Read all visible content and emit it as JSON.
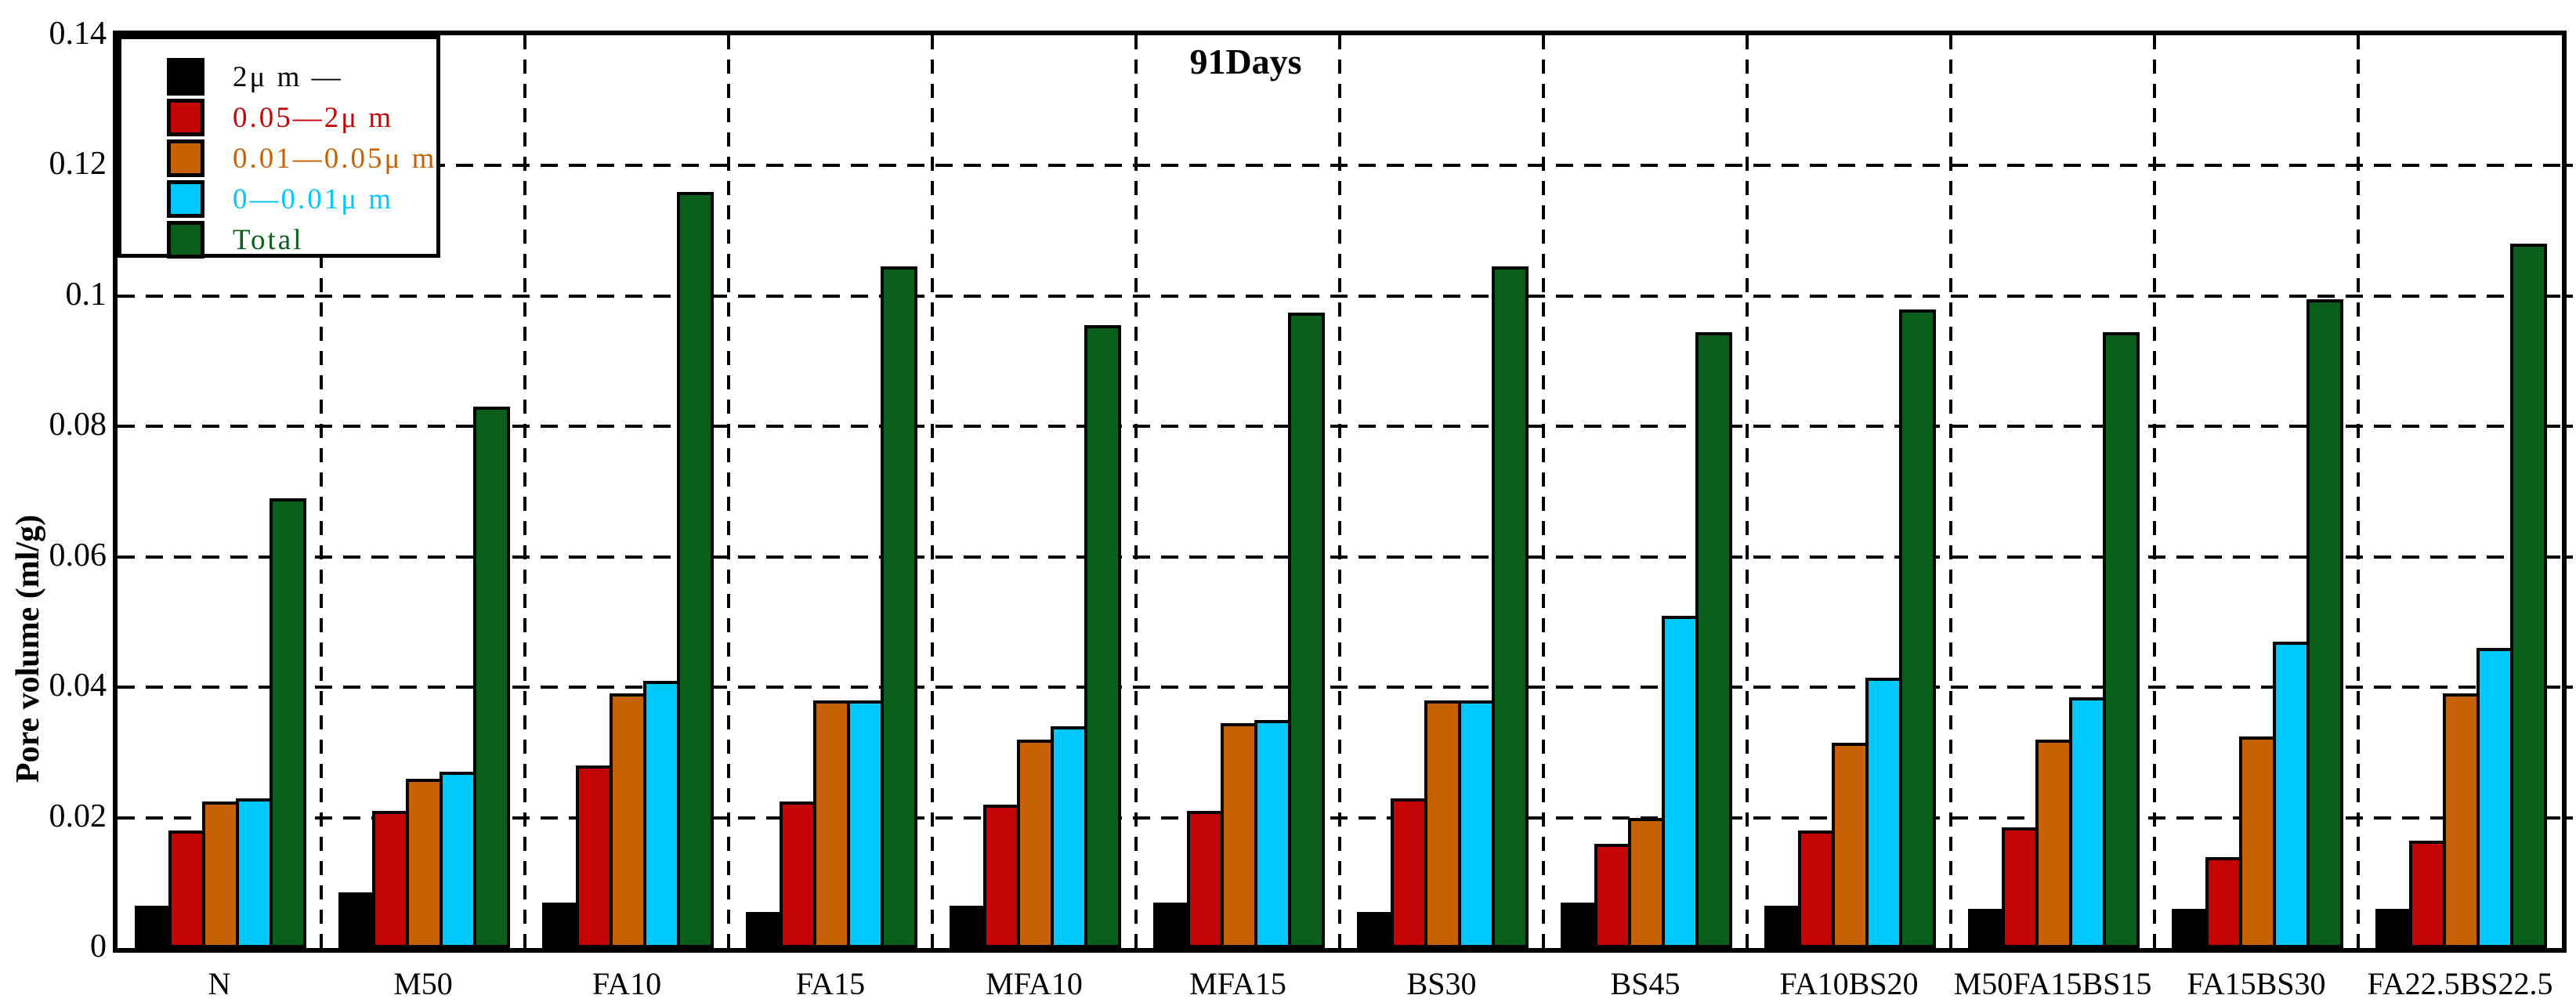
{
  "chart_data": {
    "type": "bar",
    "title": "91Days",
    "xlabel": "",
    "ylabel": "Pore volume (ml/g)",
    "ylim": [
      0,
      0.14
    ],
    "ytick_step": 0.02,
    "ytick_labels": [
      "0",
      "0.02",
      "0.04",
      "0.06",
      "0.08",
      "0.1",
      "0.12",
      "0.14"
    ],
    "grid": "dashed horizontal gridlines every 0.02; dashed vertical lines between categories",
    "legend_position": "top-left",
    "categories": [
      "N",
      "M50",
      "FA10",
      "FA15",
      "MFA10",
      "MFA15",
      "BS30",
      "BS45",
      "FA10BS20",
      "M50FA15BS15",
      "FA15BS30",
      "FA22.5BS22.5"
    ],
    "series": [
      {
        "name": "2μ m —",
        "color": "#000000",
        "values": [
          0.0065,
          0.0085,
          0.007,
          0.0055,
          0.0065,
          0.007,
          0.0055,
          0.007,
          0.0065,
          0.006,
          0.006,
          0.006
        ]
      },
      {
        "name": "0.05—2μ m",
        "color": "#c40404",
        "values": [
          0.018,
          0.021,
          0.028,
          0.0225,
          0.022,
          0.021,
          0.023,
          0.016,
          0.018,
          0.0185,
          0.014,
          0.0165
        ]
      },
      {
        "name": "0.01—0.05μ m",
        "color": "#c66104",
        "values": [
          0.0225,
          0.026,
          0.039,
          0.038,
          0.032,
          0.0345,
          0.038,
          0.02,
          0.0315,
          0.032,
          0.0325,
          0.039
        ]
      },
      {
        "name": "0—0.01μ m",
        "color": "#00c7fc",
        "values": [
          0.023,
          0.027,
          0.041,
          0.038,
          0.034,
          0.035,
          0.038,
          0.051,
          0.0415,
          0.0385,
          0.047,
          0.046
        ]
      },
      {
        "name": "Total",
        "color": "#085e1a",
        "values": [
          0.069,
          0.083,
          0.116,
          0.1045,
          0.0955,
          0.0975,
          0.1045,
          0.0945,
          0.098,
          0.0945,
          0.0995,
          0.108
        ]
      }
    ]
  }
}
